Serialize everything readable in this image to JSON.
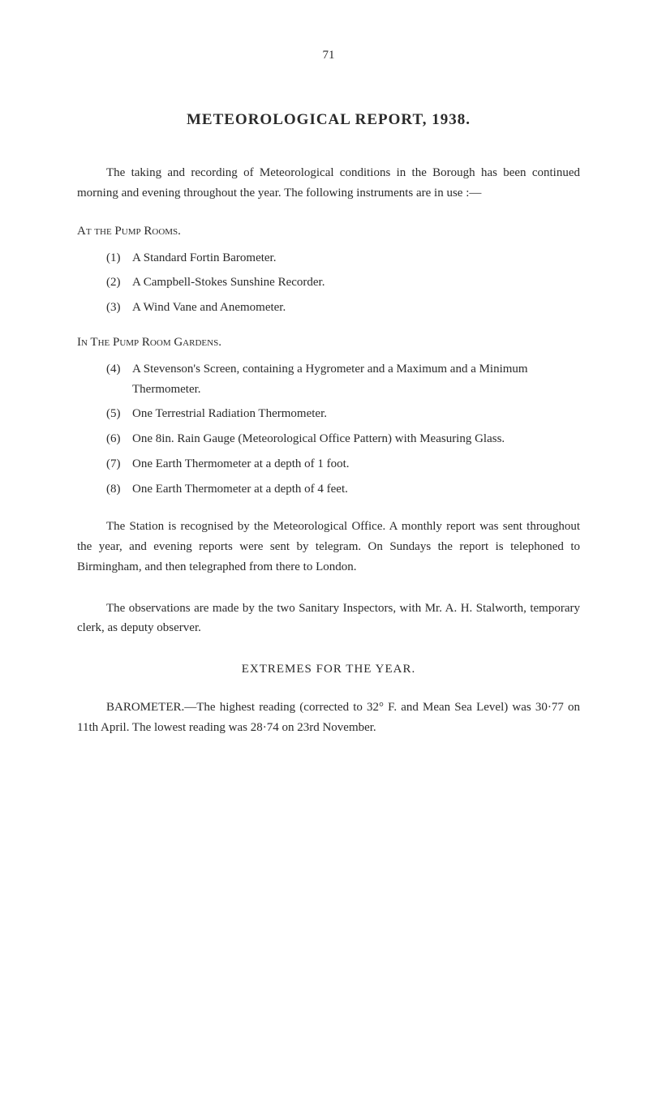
{
  "pageNumber": "71",
  "mainTitle": "METEOROLOGICAL REPORT, 1938.",
  "intro": "The taking and recording of Meteorological conditions in the Borough has been continued morning and evening throughout the year. The following instruments are in use :—",
  "section1": {
    "heading": "At the Pump Rooms.",
    "items": [
      {
        "num": "(1)",
        "text": "A Standard Fortin Barometer."
      },
      {
        "num": "(2)",
        "text": "A Campbell-Stokes Sunshine Recorder."
      },
      {
        "num": "(3)",
        "text": "A Wind Vane and Anemometer."
      }
    ]
  },
  "section2": {
    "heading": "In The Pump Room Gardens.",
    "items": [
      {
        "num": "(4)",
        "text": "A Stevenson's Screen, containing a Hygrometer and a Maximum and a Minimum Thermometer."
      },
      {
        "num": "(5)",
        "text": "One Terrestrial Radiation Thermometer."
      },
      {
        "num": "(6)",
        "text": "One 8in. Rain Gauge (Meteorological Office Pattern) with Measuring Glass."
      },
      {
        "num": "(7)",
        "text": "One Earth Thermometer at a depth of 1 foot."
      },
      {
        "num": "(8)",
        "text": "One Earth Thermometer at a depth of 4 feet."
      }
    ]
  },
  "para2": "The Station is recognised by the Meteorological Office. A monthly report was sent throughout the year, and evening reports were sent by telegram. On Sundays the report is telephoned to Birmingham, and then telegraphed from there to London.",
  "para3": "The observations are made by the two Sanitary Inspectors, with Mr. A. H. Stalworth, temporary clerk, as deputy observer.",
  "subheading": "EXTREMES FOR THE YEAR.",
  "para4": "BAROMETER.—The highest reading (corrected to 32° F. and Mean Sea Level) was 30·77 on 11th April. The lowest reading was 28·74 on 23rd November."
}
